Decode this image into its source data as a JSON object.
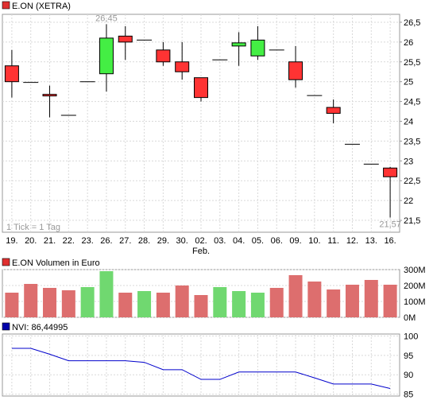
{
  "chart_data": [
    {
      "type": "candlestick",
      "title": "E.ON (XETRA)",
      "legend_color": "#e03030",
      "note": "1 Tick = 1 Tag",
      "ylim": [
        21.2,
        26.7
      ],
      "yticks": [
        "21,5",
        "22",
        "22,5",
        "23",
        "23,5",
        "24",
        "24,5",
        "25",
        "25,5",
        "26",
        "26,5"
      ],
      "ytick_values": [
        21.5,
        22,
        22.5,
        23,
        23.5,
        24,
        24.5,
        25,
        25.5,
        26,
        26.5
      ],
      "categories": [
        "19.",
        "20.",
        "21.",
        "22.",
        "23.",
        "26.",
        "27.",
        "28.",
        "29.",
        "30.",
        "02.",
        "03.",
        "04.",
        "05.",
        "06.",
        "09.",
        "10.",
        "11.",
        "12.",
        "13.",
        "16."
      ],
      "sublabel": "Feb.",
      "sublabel_index": 10,
      "high_label": "26,45",
      "high_index": 5,
      "low_label": "21,57",
      "low_index": 20,
      "up_color": "#44ee44",
      "down_color": "#ff3333",
      "candles": [
        {
          "open": 25.4,
          "high": 25.8,
          "low": 24.6,
          "close": 25.0
        },
        {
          "open": 24.98,
          "high": 24.98,
          "low": 24.98,
          "close": 24.98
        },
        {
          "open": 24.68,
          "high": 24.9,
          "low": 24.1,
          "close": 24.65
        },
        {
          "open": 24.15,
          "high": 24.15,
          "low": 24.15,
          "close": 24.15
        },
        {
          "open": 25.0,
          "high": 25.0,
          "low": 25.0,
          "close": 25.0
        },
        {
          "open": 25.2,
          "high": 26.45,
          "low": 24.75,
          "close": 26.1
        },
        {
          "open": 26.15,
          "high": 26.4,
          "low": 25.55,
          "close": 26.0
        },
        {
          "open": 26.05,
          "high": 26.05,
          "low": 26.05,
          "close": 26.05
        },
        {
          "open": 25.8,
          "high": 26.0,
          "low": 25.4,
          "close": 25.5
        },
        {
          "open": 25.5,
          "high": 26.0,
          "low": 25.05,
          "close": 25.25
        },
        {
          "open": 25.1,
          "high": 25.1,
          "low": 24.5,
          "close": 24.6
        },
        {
          "open": 25.55,
          "high": 25.55,
          "low": 25.55,
          "close": 25.55
        },
        {
          "open": 25.9,
          "high": 26.25,
          "low": 25.4,
          "close": 25.98
        },
        {
          "open": 25.65,
          "high": 26.4,
          "low": 25.55,
          "close": 26.05
        },
        {
          "open": 25.8,
          "high": 25.8,
          "low": 25.8,
          "close": 25.8
        },
        {
          "open": 25.5,
          "high": 25.9,
          "low": 24.85,
          "close": 25.05
        },
        {
          "open": 24.65,
          "high": 24.65,
          "low": 24.65,
          "close": 24.65
        },
        {
          "open": 24.35,
          "high": 24.55,
          "low": 23.95,
          "close": 24.2
        },
        {
          "open": 23.42,
          "high": 23.42,
          "low": 23.42,
          "close": 23.42
        },
        {
          "open": 22.92,
          "high": 22.92,
          "low": 22.92,
          "close": 22.92
        },
        {
          "open": 22.82,
          "high": 22.85,
          "low": 21.57,
          "close": 22.6
        }
      ]
    },
    {
      "type": "bar",
      "title": "E.ON Volumen in Euro",
      "legend_color": "#e03030",
      "ylim": [
        0,
        300
      ],
      "yticks": [
        "0M",
        "100M",
        "200M",
        "300M"
      ],
      "ytick_values": [
        0,
        100,
        200,
        300
      ],
      "up_color": "#70d870",
      "down_color": "#dd6e6e",
      "values": [
        155,
        210,
        185,
        170,
        190,
        290,
        155,
        165,
        155,
        200,
        140,
        190,
        165,
        155,
        185,
        265,
        225,
        175,
        205,
        235,
        205
      ],
      "colors": [
        "down",
        "down",
        "down",
        "down",
        "up",
        "up",
        "down",
        "up",
        "down",
        "down",
        "down",
        "up",
        "up",
        "up",
        "down",
        "down",
        "down",
        "down",
        "down",
        "down",
        "down"
      ]
    },
    {
      "type": "line",
      "title": "NVI: 86,44995",
      "legend_color": "#0000aa",
      "line_color": "#0000cc",
      "ylim": [
        84.5,
        100.5
      ],
      "yticks": [
        "85",
        "90",
        "95",
        "100"
      ],
      "ytick_values": [
        85,
        90,
        95,
        100
      ],
      "values": [
        96.8,
        96.8,
        95.3,
        93.6,
        93.6,
        93.6,
        93.6,
        93.2,
        91.3,
        91.3,
        88.8,
        88.8,
        90.7,
        90.7,
        90.7,
        90.7,
        89.2,
        87.6,
        87.6,
        87.6,
        86.45
      ]
    }
  ]
}
